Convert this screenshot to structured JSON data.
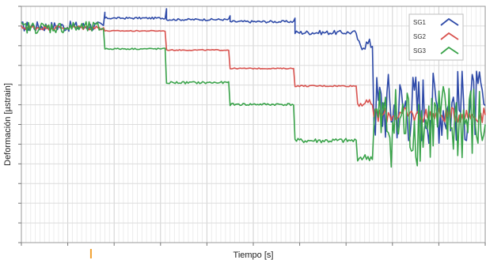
{
  "chart_data": {
    "type": "line",
    "title": "",
    "xlabel": "Tiempo [s]",
    "ylabel": "Deformación [µstrain]",
    "xlim": [
      0,
      100
    ],
    "ylim": [
      0,
      100
    ],
    "tick_labels_visible": false,
    "grid": true,
    "legend": {
      "placement": "top-right",
      "entries": [
        "SG1",
        "SG2",
        "SG3"
      ]
    },
    "marker": {
      "description": "orange tick on x axis",
      "x": 15.0,
      "color": "#f0a030"
    },
    "series": [
      {
        "name": "SG1",
        "color": "#2e4aa8",
        "steps": [
          {
            "x0": 0.0,
            "x1": 18.0,
            "y": 91.5,
            "noise": 2.2
          },
          {
            "x0": 18.0,
            "x1": 31.3,
            "y": 95.0,
            "noise": 0.4
          },
          {
            "x0": 31.3,
            "x1": 45.0,
            "y": 94.4,
            "noise": 0.4
          },
          {
            "x0": 45.0,
            "x1": 59.0,
            "y": 93.5,
            "noise": 0.5
          },
          {
            "x0": 59.0,
            "x1": 72.5,
            "y": 88.9,
            "noise": 0.9
          },
          {
            "x0": 72.5,
            "x1": 76.0,
            "y": 84.0,
            "noise": 2.5
          },
          {
            "x0": 76.0,
            "x1": 100.0,
            "y": 58.0,
            "noise": 16.0
          }
        ],
        "spikes": [
          {
            "x": 18.0,
            "y": 97.5
          },
          {
            "x": 31.3,
            "y": 99.0
          },
          {
            "x": 45.0,
            "y": 96.0
          },
          {
            "x": 59.0,
            "y": 95.0
          }
        ]
      },
      {
        "name": "SG2",
        "color": "#d9534f",
        "steps": [
          {
            "x0": 0.0,
            "x1": 18.0,
            "y": 91.0,
            "noise": 1.0
          },
          {
            "x0": 18.0,
            "x1": 31.3,
            "y": 89.6,
            "noise": 0.2
          },
          {
            "x0": 31.3,
            "x1": 45.0,
            "y": 81.5,
            "noise": 0.2
          },
          {
            "x0": 45.0,
            "x1": 59.0,
            "y": 73.7,
            "noise": 0.2
          },
          {
            "x0": 59.0,
            "x1": 72.5,
            "y": 66.3,
            "noise": 0.3
          },
          {
            "x0": 72.5,
            "x1": 76.0,
            "y": 59.0,
            "noise": 1.5
          },
          {
            "x0": 76.0,
            "x1": 100.0,
            "y": 54.0,
            "noise": 3.2
          }
        ],
        "spikes": []
      },
      {
        "name": "SG3",
        "color": "#3aa34a",
        "steps": [
          {
            "x0": 0.0,
            "x1": 18.0,
            "y": 91.0,
            "noise": 2.5
          },
          {
            "x0": 18.0,
            "x1": 31.3,
            "y": 82.0,
            "noise": 0.3
          },
          {
            "x0": 31.3,
            "x1": 45.0,
            "y": 67.7,
            "noise": 0.5
          },
          {
            "x0": 45.0,
            "x1": 59.0,
            "y": 58.5,
            "noise": 0.5
          },
          {
            "x0": 59.0,
            "x1": 72.5,
            "y": 43.1,
            "noise": 1.0
          },
          {
            "x0": 72.5,
            "x1": 76.0,
            "y": 36.0,
            "noise": 1.5
          },
          {
            "x0": 76.0,
            "x1": 100.0,
            "y": 50.0,
            "noise": 18.0
          }
        ],
        "spikes": []
      }
    ]
  }
}
